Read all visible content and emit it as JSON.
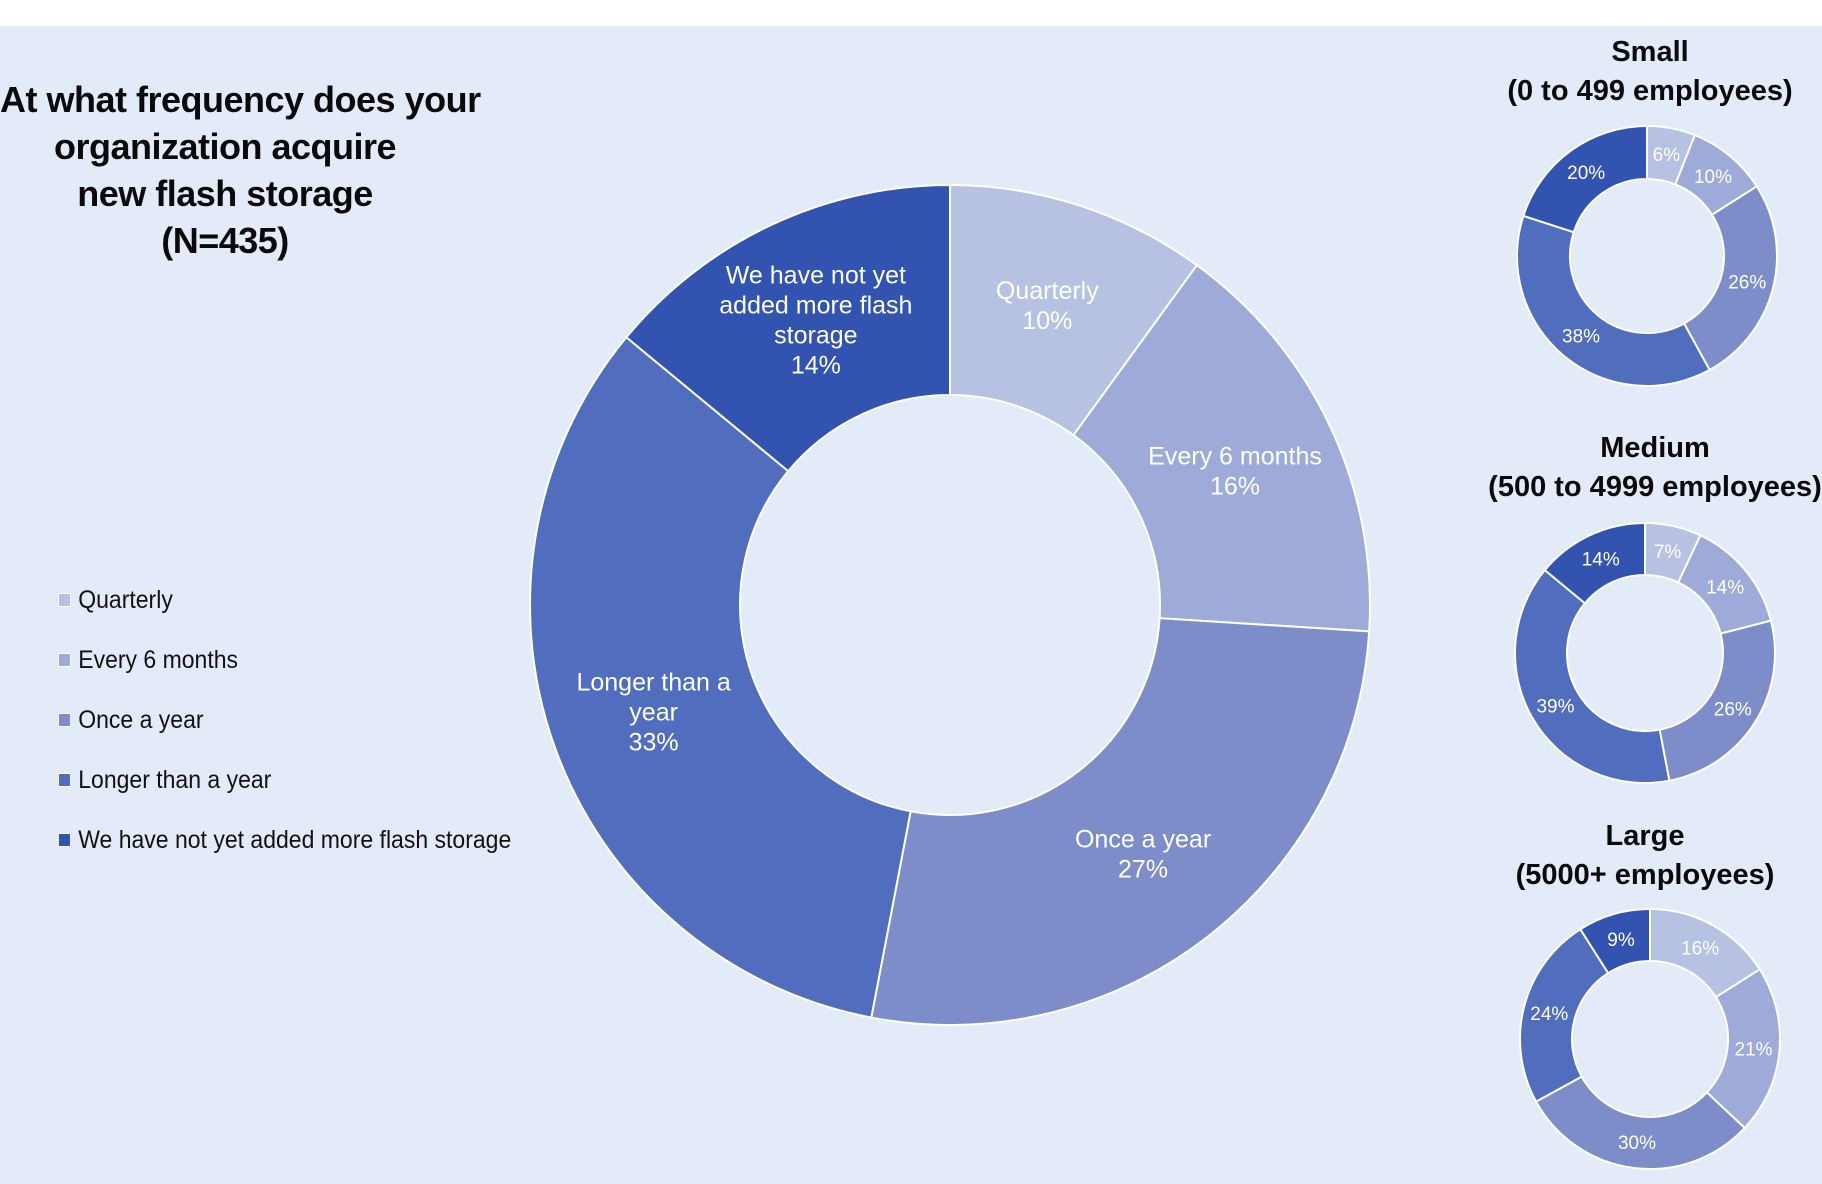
{
  "title_lines": [
    "At what frequency does your",
    "organization acquire",
    "new flash storage",
    "(N=435)"
  ],
  "colors": [
    "#b7c1e1",
    "#9eabd8",
    "#7d8dc9",
    "#506ebd",
    "#3254b0"
  ],
  "legend": [
    "Quarterly",
    "Every 6 months",
    "Once a year",
    "Longer than a year",
    "We have not yet added more flash storage"
  ],
  "chart_data": [
    {
      "type": "pie",
      "variant": "donut",
      "title": "At what frequency does your organization acquire new flash storage (N=435)",
      "categories": [
        "Quarterly",
        "Every 6 months",
        "Once a year",
        "Longer than a year",
        "We have not yet added more flash storage"
      ],
      "values": [
        10,
        16,
        27,
        33,
        14
      ],
      "slice_labels": [
        [
          "Quarterly",
          "10%"
        ],
        [
          "Every 6 months",
          "16%"
        ],
        [
          "Once a year",
          "27%"
        ],
        [
          "Longer than a",
          "year",
          "33%"
        ],
        [
          "We have not yet",
          "added more flash",
          "storage",
          "14%"
        ]
      ],
      "legend_position": "left"
    },
    {
      "type": "pie",
      "variant": "donut",
      "title_lines": [
        "Small",
        "(0 to 499 employees)"
      ],
      "categories": [
        "Quarterly",
        "Every 6 months",
        "Once a year",
        "Longer than a year",
        "We have not yet added more flash storage"
      ],
      "values": [
        6,
        10,
        26,
        38,
        20
      ],
      "value_labels": [
        "6%",
        "10%",
        "26%",
        "38%",
        "20%"
      ]
    },
    {
      "type": "pie",
      "variant": "donut",
      "title_lines": [
        "Medium",
        "(500 to 4999 employees)"
      ],
      "categories": [
        "Quarterly",
        "Every 6 months",
        "Once a year",
        "Longer than a year",
        "We have not yet added more flash storage"
      ],
      "values": [
        7,
        14,
        26,
        39,
        14
      ],
      "value_labels": [
        "7%",
        "14%",
        "26%",
        "39%",
        "14%"
      ]
    },
    {
      "type": "pie",
      "variant": "donut",
      "title_lines": [
        "Large",
        "(5000+ employees)"
      ],
      "categories": [
        "Quarterly",
        "Every 6 months",
        "Once a year",
        "Longer than a year",
        "We have not yet added more flash storage"
      ],
      "values": [
        16,
        21,
        30,
        24,
        9
      ],
      "value_labels": [
        "16%",
        "21%",
        "30%",
        "24%",
        "9%"
      ]
    }
  ]
}
